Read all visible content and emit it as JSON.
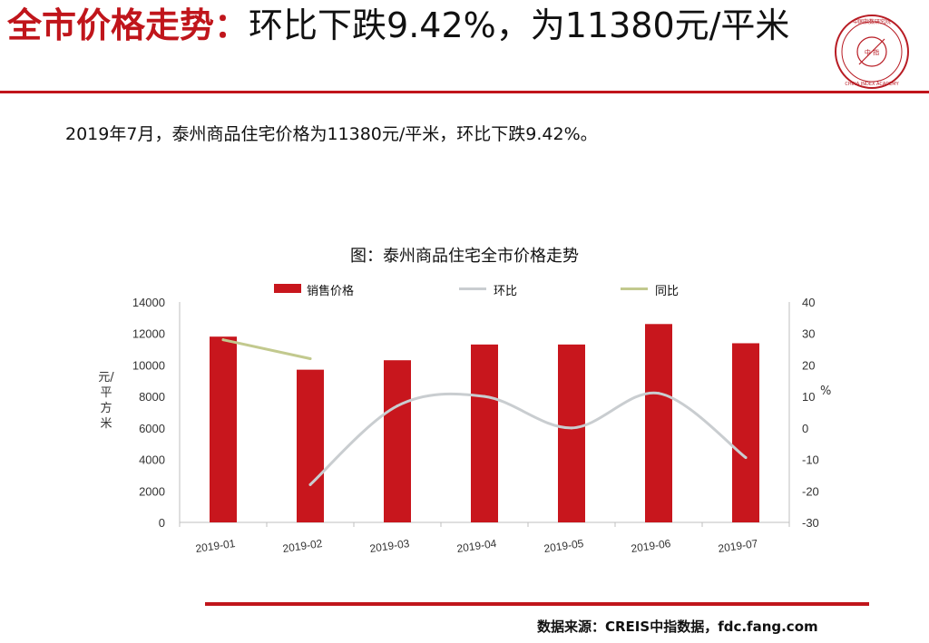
{
  "slide": {
    "title_highlight": "全市价格走势：",
    "title_rest": "环比下跌9.42%，为11380元/平米",
    "summary": "2019年7月，泰州商品住宅价格为11380元/平米，环比下跌9.42%。",
    "source": "数据来源：CREIS中指数据，fdc.fang.com",
    "accent_color": "#c0151b",
    "logo": {
      "icon": "china-index-academy-seal-icon",
      "top_text": "中国指数研究院",
      "center_text": "中 指",
      "bottom_text": "CHINA INDEX ACADEMY"
    }
  },
  "chart_data": {
    "type": "bar",
    "title": "图：泰州商品住宅全市价格走势",
    "categories": [
      "2019-01",
      "2019-02",
      "2019-03",
      "2019-04",
      "2019-05",
      "2019-06",
      "2019-07"
    ],
    "series": [
      {
        "name": "销售价格",
        "type": "bar",
        "axis": "left",
        "color": "#c8161d",
        "values": [
          11800,
          9700,
          10300,
          11300,
          11300,
          12600,
          11380
        ]
      },
      {
        "name": "环比",
        "type": "line",
        "axis": "right",
        "color": "#c9cdd0",
        "smooth": true,
        "values": [
          null,
          -18,
          7,
          10,
          0,
          11,
          -9.42
        ]
      },
      {
        "name": "同比",
        "type": "line",
        "axis": "right",
        "color": "#c2c98e",
        "values": [
          28,
          22,
          null,
          null,
          null,
          null,
          null
        ]
      }
    ],
    "ylabel": "元/平方米",
    "ylim": [
      0,
      14000
    ],
    "yticks": [
      0,
      2000,
      4000,
      6000,
      8000,
      10000,
      12000,
      14000
    ],
    "y2label": "%",
    "y2lim": [
      -30,
      40
    ],
    "y2ticks": [
      -30,
      -20,
      -10,
      0,
      10,
      20,
      30,
      40
    ],
    "legend_position": "top",
    "grid": false
  }
}
